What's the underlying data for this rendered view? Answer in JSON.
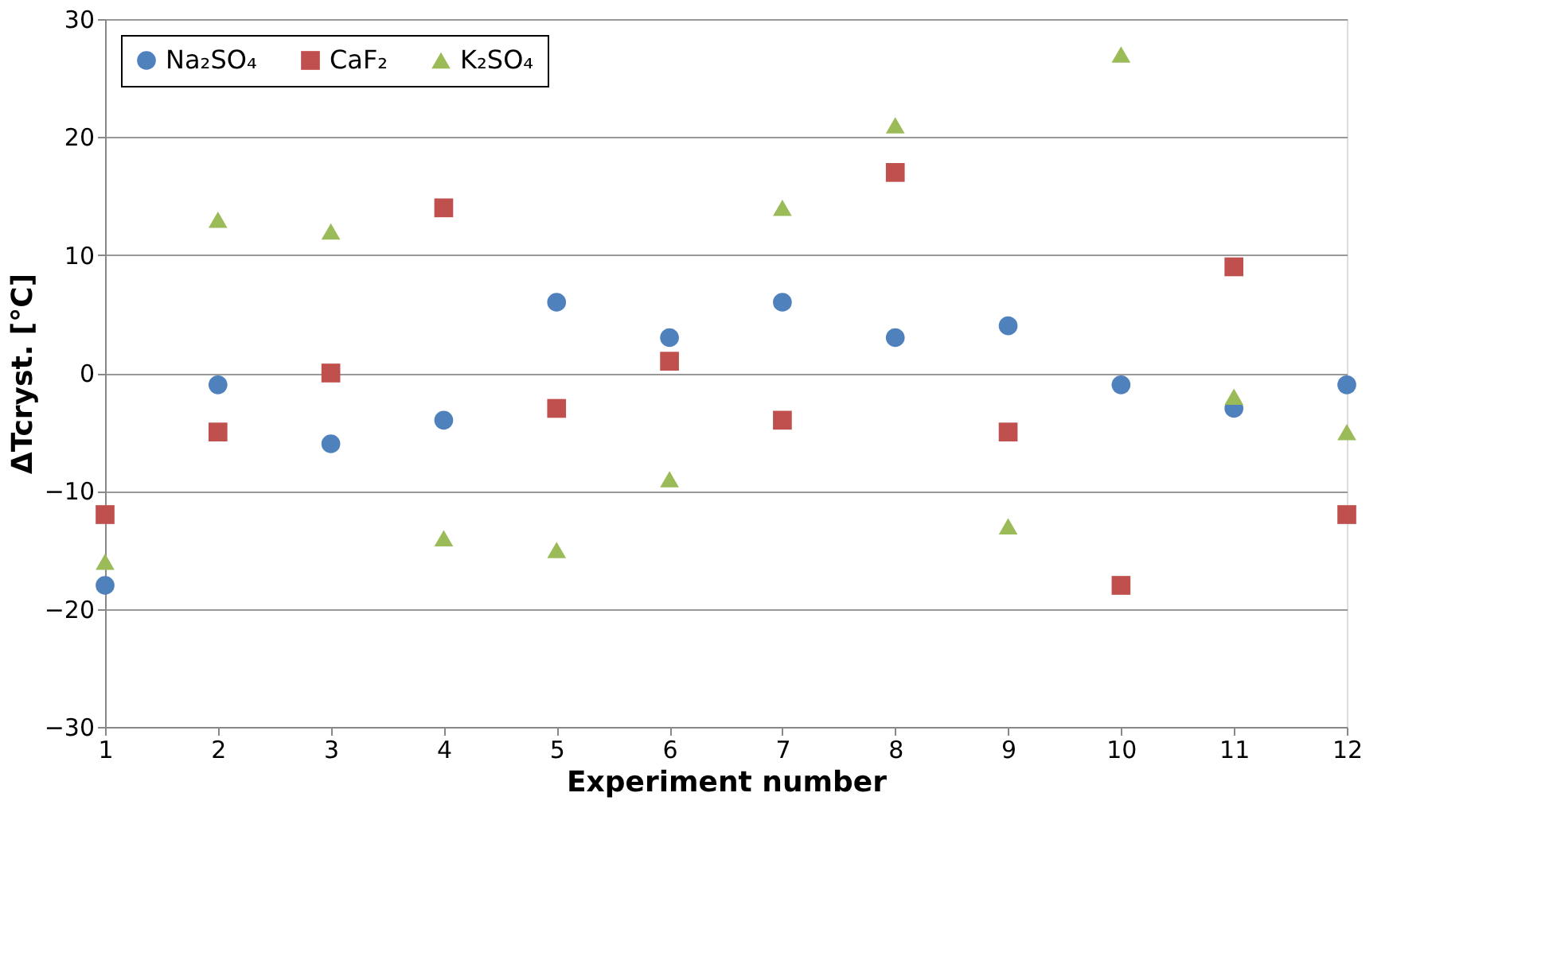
{
  "chart_data": {
    "type": "scatter",
    "xlabel": "Experiment number",
    "ylabel": "ΔTcryst. [°C]",
    "x": [
      1,
      2,
      3,
      4,
      5,
      6,
      7,
      8,
      9,
      10,
      11,
      12
    ],
    "series": [
      {
        "name": "Na₂SO₄",
        "color": "#4f81bd",
        "marker": "circle",
        "values": [
          -18,
          -1,
          -6,
          -4,
          6,
          3,
          6,
          3,
          4,
          -1,
          -3,
          -1
        ]
      },
      {
        "name": "CaF₂",
        "color": "#c0504d",
        "marker": "square",
        "values": [
          -12,
          -5,
          0,
          14,
          -3,
          1,
          -4,
          17,
          -5,
          -18,
          9,
          -12
        ]
      },
      {
        "name": "K₂SO₄",
        "color": "#9bbb59",
        "marker": "triangle",
        "values": [
          -16,
          13,
          12,
          -14,
          -15,
          -9,
          14,
          21,
          -13,
          27,
          -2,
          -5
        ]
      }
    ],
    "xlim": [
      1,
      12
    ],
    "xticks": [
      1,
      2,
      3,
      4,
      5,
      6,
      7,
      8,
      9,
      10,
      11,
      12
    ],
    "ylim": [
      -30,
      30
    ],
    "yticks": [
      -30,
      -20,
      -10,
      0,
      10,
      20,
      30
    ],
    "grid": "y",
    "legend": "top left"
  }
}
